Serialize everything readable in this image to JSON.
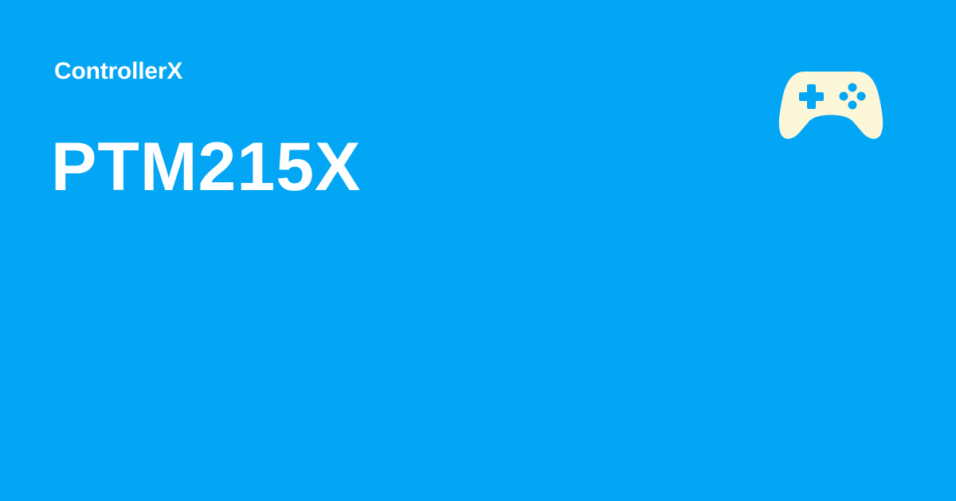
{
  "brand": {
    "name": "ControllerX"
  },
  "page": {
    "title": "PTM215X"
  },
  "logo": {
    "icon": "gamepad-icon"
  },
  "colors": {
    "background": "#03A6F4",
    "text": "#FFFFFF",
    "icon": "#FDF7D9"
  }
}
